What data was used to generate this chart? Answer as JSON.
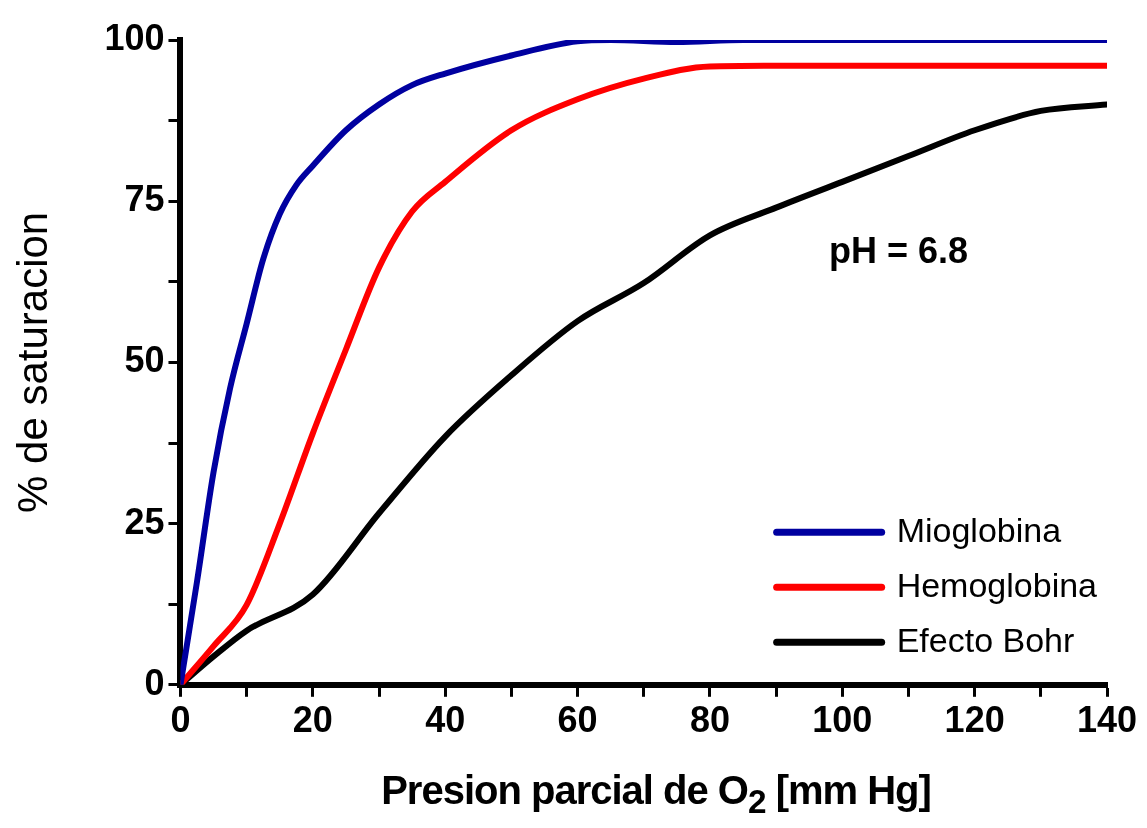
{
  "chart_data": {
    "type": "line",
    "xlabel": "Presion parcial de O$_{2}$ [mm Hg]",
    "ylabel": "% de saturacion",
    "xlim": [
      0,
      140
    ],
    "ylim": [
      0,
      100
    ],
    "xticks": [
      0,
      {
        "value": 10,
        "label": null
      },
      20,
      {
        "value": 30,
        "label": null
      },
      40,
      {
        "value": 50,
        "label": null
      },
      60,
      {
        "value": 70,
        "label": null
      },
      80,
      {
        "value": 90,
        "label": null
      },
      100,
      {
        "value": 110,
        "label": null
      },
      120,
      {
        "value": 130,
        "label": null
      },
      140
    ],
    "yticks": [
      0,
      {
        "value": 12.5,
        "label": null
      },
      25,
      {
        "value": 37.5,
        "label": null
      },
      50,
      {
        "value": 62.5,
        "label": null
      },
      75,
      {
        "value": 87.5,
        "label": null
      },
      100
    ],
    "grid": false,
    "legend": "bottom right",
    "marker": "none",
    "line_style": "solid",
    "annotations": [
      "pH = 6.8"
    ],
    "series": [
      {
        "name": "Mioglobina",
        "color": "#0000a0",
        "x": [
          0,
          2.5,
          5,
          7.5,
          10,
          12.5,
          15,
          17.5,
          20,
          25,
          30,
          35,
          40,
          50,
          60,
          65,
          75,
          85,
          140
        ],
        "values": [
          0,
          16,
          33,
          46,
          56,
          66,
          73,
          77.5,
          80.5,
          86,
          90,
          93,
          94.8,
          97.6,
          99.8,
          100,
          99.7,
          100,
          100
        ]
      },
      {
        "name": "Hemoglobina",
        "color": "#ff0000",
        "x": [
          0,
          5,
          10,
          15,
          20,
          25,
          30,
          35,
          40,
          50,
          60,
          70,
          80,
          90,
          140
        ],
        "values": [
          0,
          6,
          12.4,
          25,
          39,
          52,
          64.7,
          73.4,
          78,
          86,
          90.8,
          94,
          95.9,
          96,
          96
        ]
      },
      {
        "name": "Efecto Bohr",
        "color": "#000000",
        "x": [
          0,
          5,
          10,
          20,
          30,
          40,
          50,
          60,
          70,
          80,
          90,
          100,
          110,
          120,
          130,
          140
        ],
        "values": [
          0,
          4.4,
          8.4,
          14,
          26.6,
          38.5,
          48,
          56.4,
          62.3,
          69.7,
          74,
          78,
          82,
          86,
          89,
          90
        ]
      }
    ]
  }
}
